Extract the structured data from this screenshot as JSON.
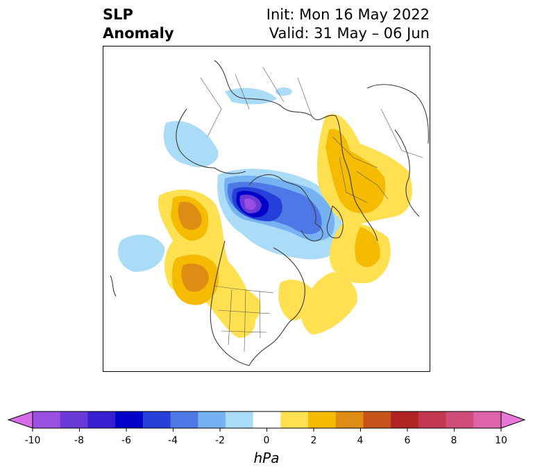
{
  "header": {
    "field_line1": "SLP",
    "field_line2": "Anomaly",
    "init_text": "Init: Mon 16 May 2022",
    "valid_text": "Valid: 31 May – 06 Jun"
  },
  "colorbar": {
    "unit": "hPa",
    "ticks": [
      "-10",
      "-8",
      "-6",
      "-4",
      "-2",
      "0",
      "2",
      "4",
      "6",
      "8",
      "10"
    ],
    "colors": [
      "#d56ee6",
      "#9b4fe0",
      "#6a3ad9",
      "#3820d0",
      "#0000c8",
      "#2440d8",
      "#4e78e6",
      "#76b2f2",
      "#aadcf8",
      "#ffffff",
      "#ffe050",
      "#f4bb00",
      "#de8c14",
      "#c8541c",
      "#b02424",
      "#c23850",
      "#d04c78",
      "#dc64a8",
      "#e878d8"
    ]
  }
}
